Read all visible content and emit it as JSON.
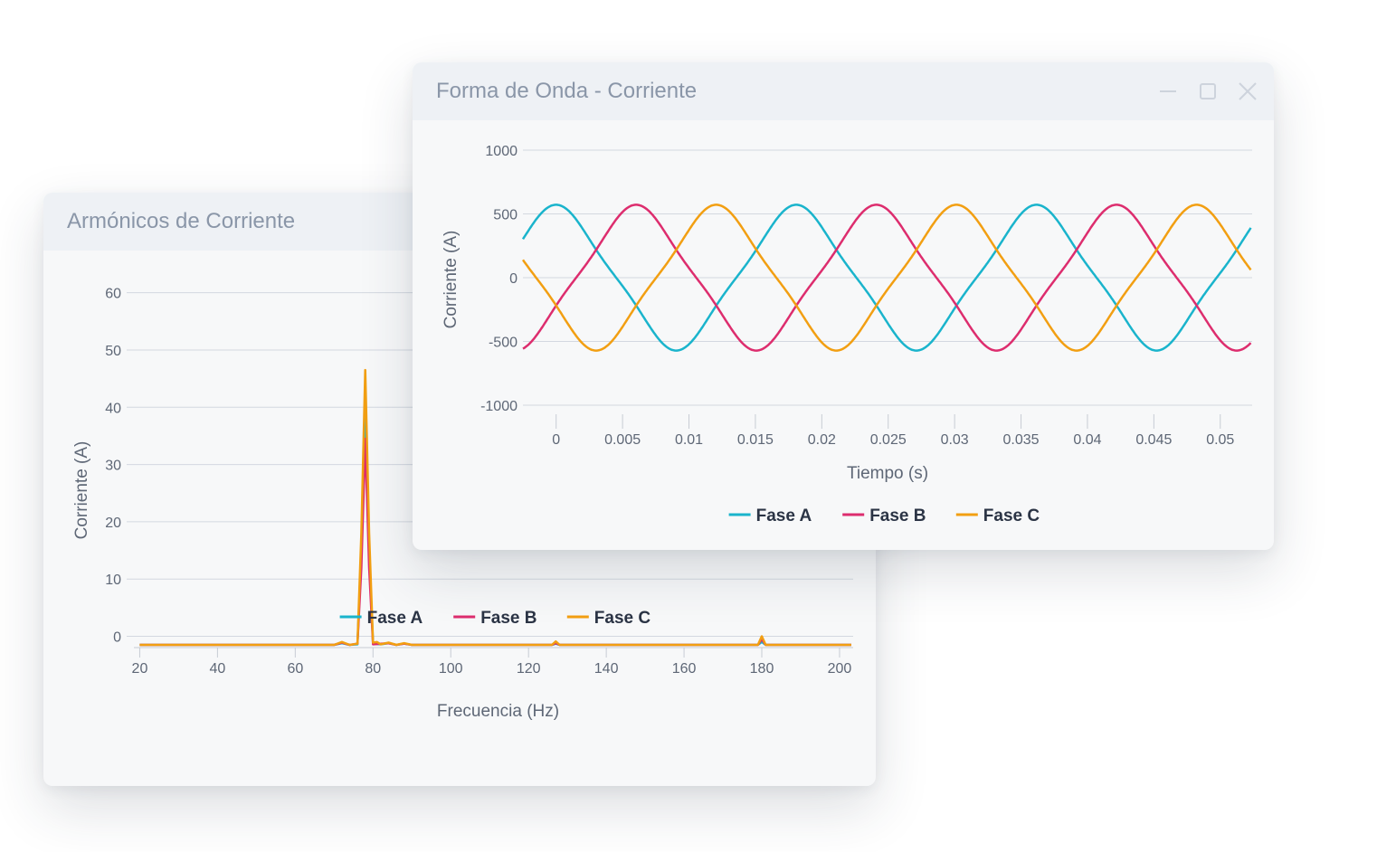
{
  "harmonics": {
    "title": "Armónicos de Corriente",
    "chart_data": {
      "type": "line",
      "title": "Armónicos de Corriente",
      "xlabel": "Frecuencia (Hz)",
      "ylabel": "Corriente (A)",
      "xlim": [
        18.5,
        203.5
      ],
      "ylim": [
        -1.5,
        62
      ],
      "x_ticks": [
        20,
        40,
        60,
        80,
        100,
        120,
        140,
        160,
        180,
        200
      ],
      "y_ticks": [
        0,
        10,
        20,
        30,
        40,
        50,
        60
      ],
      "grid": true,
      "legend_position": "bottom-center",
      "series": [
        {
          "name": "Fase A",
          "color": "#1ab4cc",
          "points": [
            [
              20,
              -1.5
            ],
            [
              70,
              -1.5
            ],
            [
              72,
              -1.2
            ],
            [
              74,
              -1.5
            ],
            [
              76,
              -1.4
            ],
            [
              77,
              15
            ],
            [
              78,
              38.3
            ],
            [
              79,
              15
            ],
            [
              80,
              -1.3
            ],
            [
              82,
              -1.4
            ],
            [
              84,
              -1.2
            ],
            [
              86,
              -1.5
            ],
            [
              88,
              -1.3
            ],
            [
              90,
              -1.5
            ],
            [
              126,
              -1.5
            ],
            [
              127,
              -1.3
            ],
            [
              128,
              -1.5
            ],
            [
              179,
              -1.5
            ],
            [
              180,
              -1.0
            ],
            [
              181,
              -1.5
            ],
            [
              203,
              -1.5
            ]
          ]
        },
        {
          "name": "Fase B",
          "color": "#dd2d6e",
          "points": [
            [
              20,
              -1.5
            ],
            [
              70,
              -1.5
            ],
            [
              72,
              -1.1
            ],
            [
              74,
              -1.5
            ],
            [
              76,
              -1.3
            ],
            [
              77,
              12
            ],
            [
              78,
              34.5
            ],
            [
              79,
              12
            ],
            [
              80,
              -1.4
            ],
            [
              82,
              -1.3
            ],
            [
              84,
              -1.2
            ],
            [
              86,
              -1.5
            ],
            [
              88,
              -1.3
            ],
            [
              90,
              -1.5
            ],
            [
              126,
              -1.5
            ],
            [
              127,
              -1.2
            ],
            [
              128,
              -1.5
            ],
            [
              179,
              -1.5
            ],
            [
              180,
              -0.5
            ],
            [
              181,
              -1.5
            ],
            [
              203,
              -1.5
            ]
          ]
        },
        {
          "name": "Fase C",
          "color": "#f29f12",
          "points": [
            [
              20,
              -1.5
            ],
            [
              70,
              -1.5
            ],
            [
              72,
              -1.0
            ],
            [
              74,
              -1.5
            ],
            [
              76,
              -1.3
            ],
            [
              77,
              18
            ],
            [
              78,
              46.5
            ],
            [
              79,
              18
            ],
            [
              80,
              -1.1
            ],
            [
              81,
              -1.0
            ],
            [
              82,
              -1.4
            ],
            [
              84,
              -1.1
            ],
            [
              86,
              -1.5
            ],
            [
              88,
              -1.2
            ],
            [
              90,
              -1.5
            ],
            [
              126,
              -1.5
            ],
            [
              127,
              -0.9
            ],
            [
              128,
              -1.5
            ],
            [
              179,
              -1.5
            ],
            [
              180,
              0.0
            ],
            [
              181,
              -1.5
            ],
            [
              203,
              -1.5
            ]
          ]
        }
      ]
    }
  },
  "waveform": {
    "title": "Forma de Onda - Corriente",
    "controls": {
      "minimize": "minimize-icon",
      "maximize": "maximize-icon",
      "close": "close-icon"
    },
    "chart_data": {
      "type": "line",
      "title": "Forma de Onda - Corriente",
      "xlabel": "Tiempo (s)",
      "ylabel": "Corriente (A)",
      "xlim": [
        -0.0025,
        0.0524
      ],
      "ylim": [
        -1000,
        1000
      ],
      "x_ticks": [
        0,
        0.005,
        0.01,
        0.015,
        0.02,
        0.025,
        0.03,
        0.035,
        0.04,
        0.045,
        0.05
      ],
      "x_tick_labels": [
        "0",
        "0.005",
        "0.01",
        "0.015",
        "0.02",
        "0.025",
        "0.03",
        "0.035",
        "0.04",
        "0.045",
        "0.05"
      ],
      "y_ticks": [
        1000,
        500,
        0,
        -500,
        -1000
      ],
      "y_tick_labels": [
        "1000",
        "500",
        "0",
        "-500",
        "-1000"
      ],
      "grid": true,
      "legend_position": "bottom-center",
      "frequency_hz": 55.3,
      "amplitude_a": 490,
      "sample_range": [
        -0.0025,
        0.0523
      ],
      "series": [
        {
          "name": "Fase A",
          "color": "#1ab4cc",
          "phase_deg": 90
        },
        {
          "name": "Fase B",
          "color": "#dd2d6e",
          "phase_deg": -30
        },
        {
          "name": "Fase C",
          "color": "#f29f12",
          "phase_deg": 210
        }
      ]
    }
  }
}
